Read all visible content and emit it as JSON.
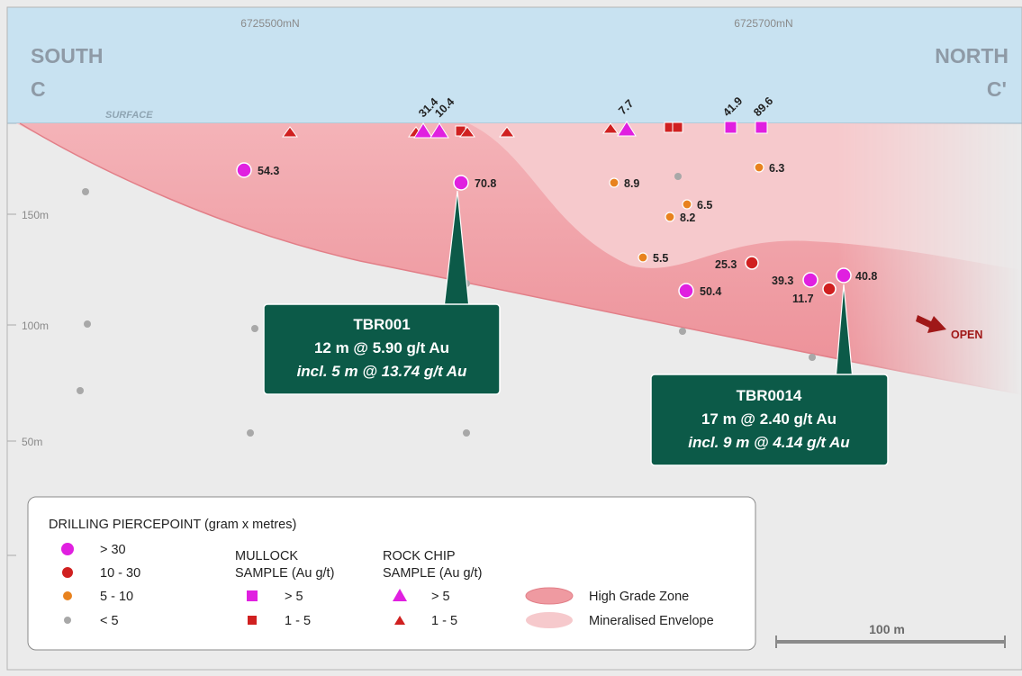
{
  "colors": {
    "sky": "#c8e2f1",
    "ground": "#ebebeb",
    "envelope": "#f6c9cc",
    "high_grade": "#ef9aa1",
    "gt30": "#e020e0",
    "r10_30": "#d02020",
    "r5_10": "#e8821e",
    "lt5": "#a8a8a8",
    "callout": "#0c5a48"
  },
  "header": {
    "north_coord_1": "6725500mN",
    "north_coord_2": "6725700mN",
    "south_label": "SOUTH",
    "south_letter": "C",
    "north_label": "NORTH",
    "north_letter": "C'",
    "surface_label": "SURFACE"
  },
  "elevations": [
    "150m",
    "100m",
    "50m"
  ],
  "drill_labels": [
    {
      "text": "54.3"
    },
    {
      "text": "70.8"
    },
    {
      "text": "8.9"
    },
    {
      "text": "6.3"
    },
    {
      "text": "6.5"
    },
    {
      "text": "8.2"
    },
    {
      "text": "5.5"
    },
    {
      "text": "25.3"
    },
    {
      "text": "39.3"
    },
    {
      "text": "40.8"
    },
    {
      "text": "11.7"
    },
    {
      "text": "50.4"
    }
  ],
  "surface_labels": [
    {
      "text": "31.4"
    },
    {
      "text": "10.4"
    },
    {
      "text": "7.7"
    },
    {
      "text": "41.9"
    },
    {
      "text": "89.6"
    }
  ],
  "open_label": "OPEN",
  "callouts": [
    {
      "hole": "TBR001",
      "line1": "12 m @ 5.90 g/t Au",
      "line2": "incl. 5 m @ 13.74 g/t Au"
    },
    {
      "hole": "TBR0014",
      "line1": "17 m @ 2.40 g/t Au",
      "line2": "incl. 9 m @ 4.14 g/t Au"
    }
  ],
  "legend": {
    "drilling_title": "DRILLING PIERCEPOINT (gram x metres)",
    "drilling": [
      "> 30",
      "10 - 30",
      "5 - 10",
      "< 5"
    ],
    "mullock_title_1": "MULLOCK",
    "mullock_title_2": "SAMPLE (Au g/t)",
    "mullock": [
      "> 5",
      "1 - 5"
    ],
    "rock_title_1": "ROCK CHIP",
    "rock_title_2": "SAMPLE (Au g/t)",
    "rock": [
      "> 5",
      "1 - 5"
    ],
    "zones": [
      "High Grade Zone",
      "Mineralised Envelope"
    ]
  },
  "scale_bar": "100 m"
}
